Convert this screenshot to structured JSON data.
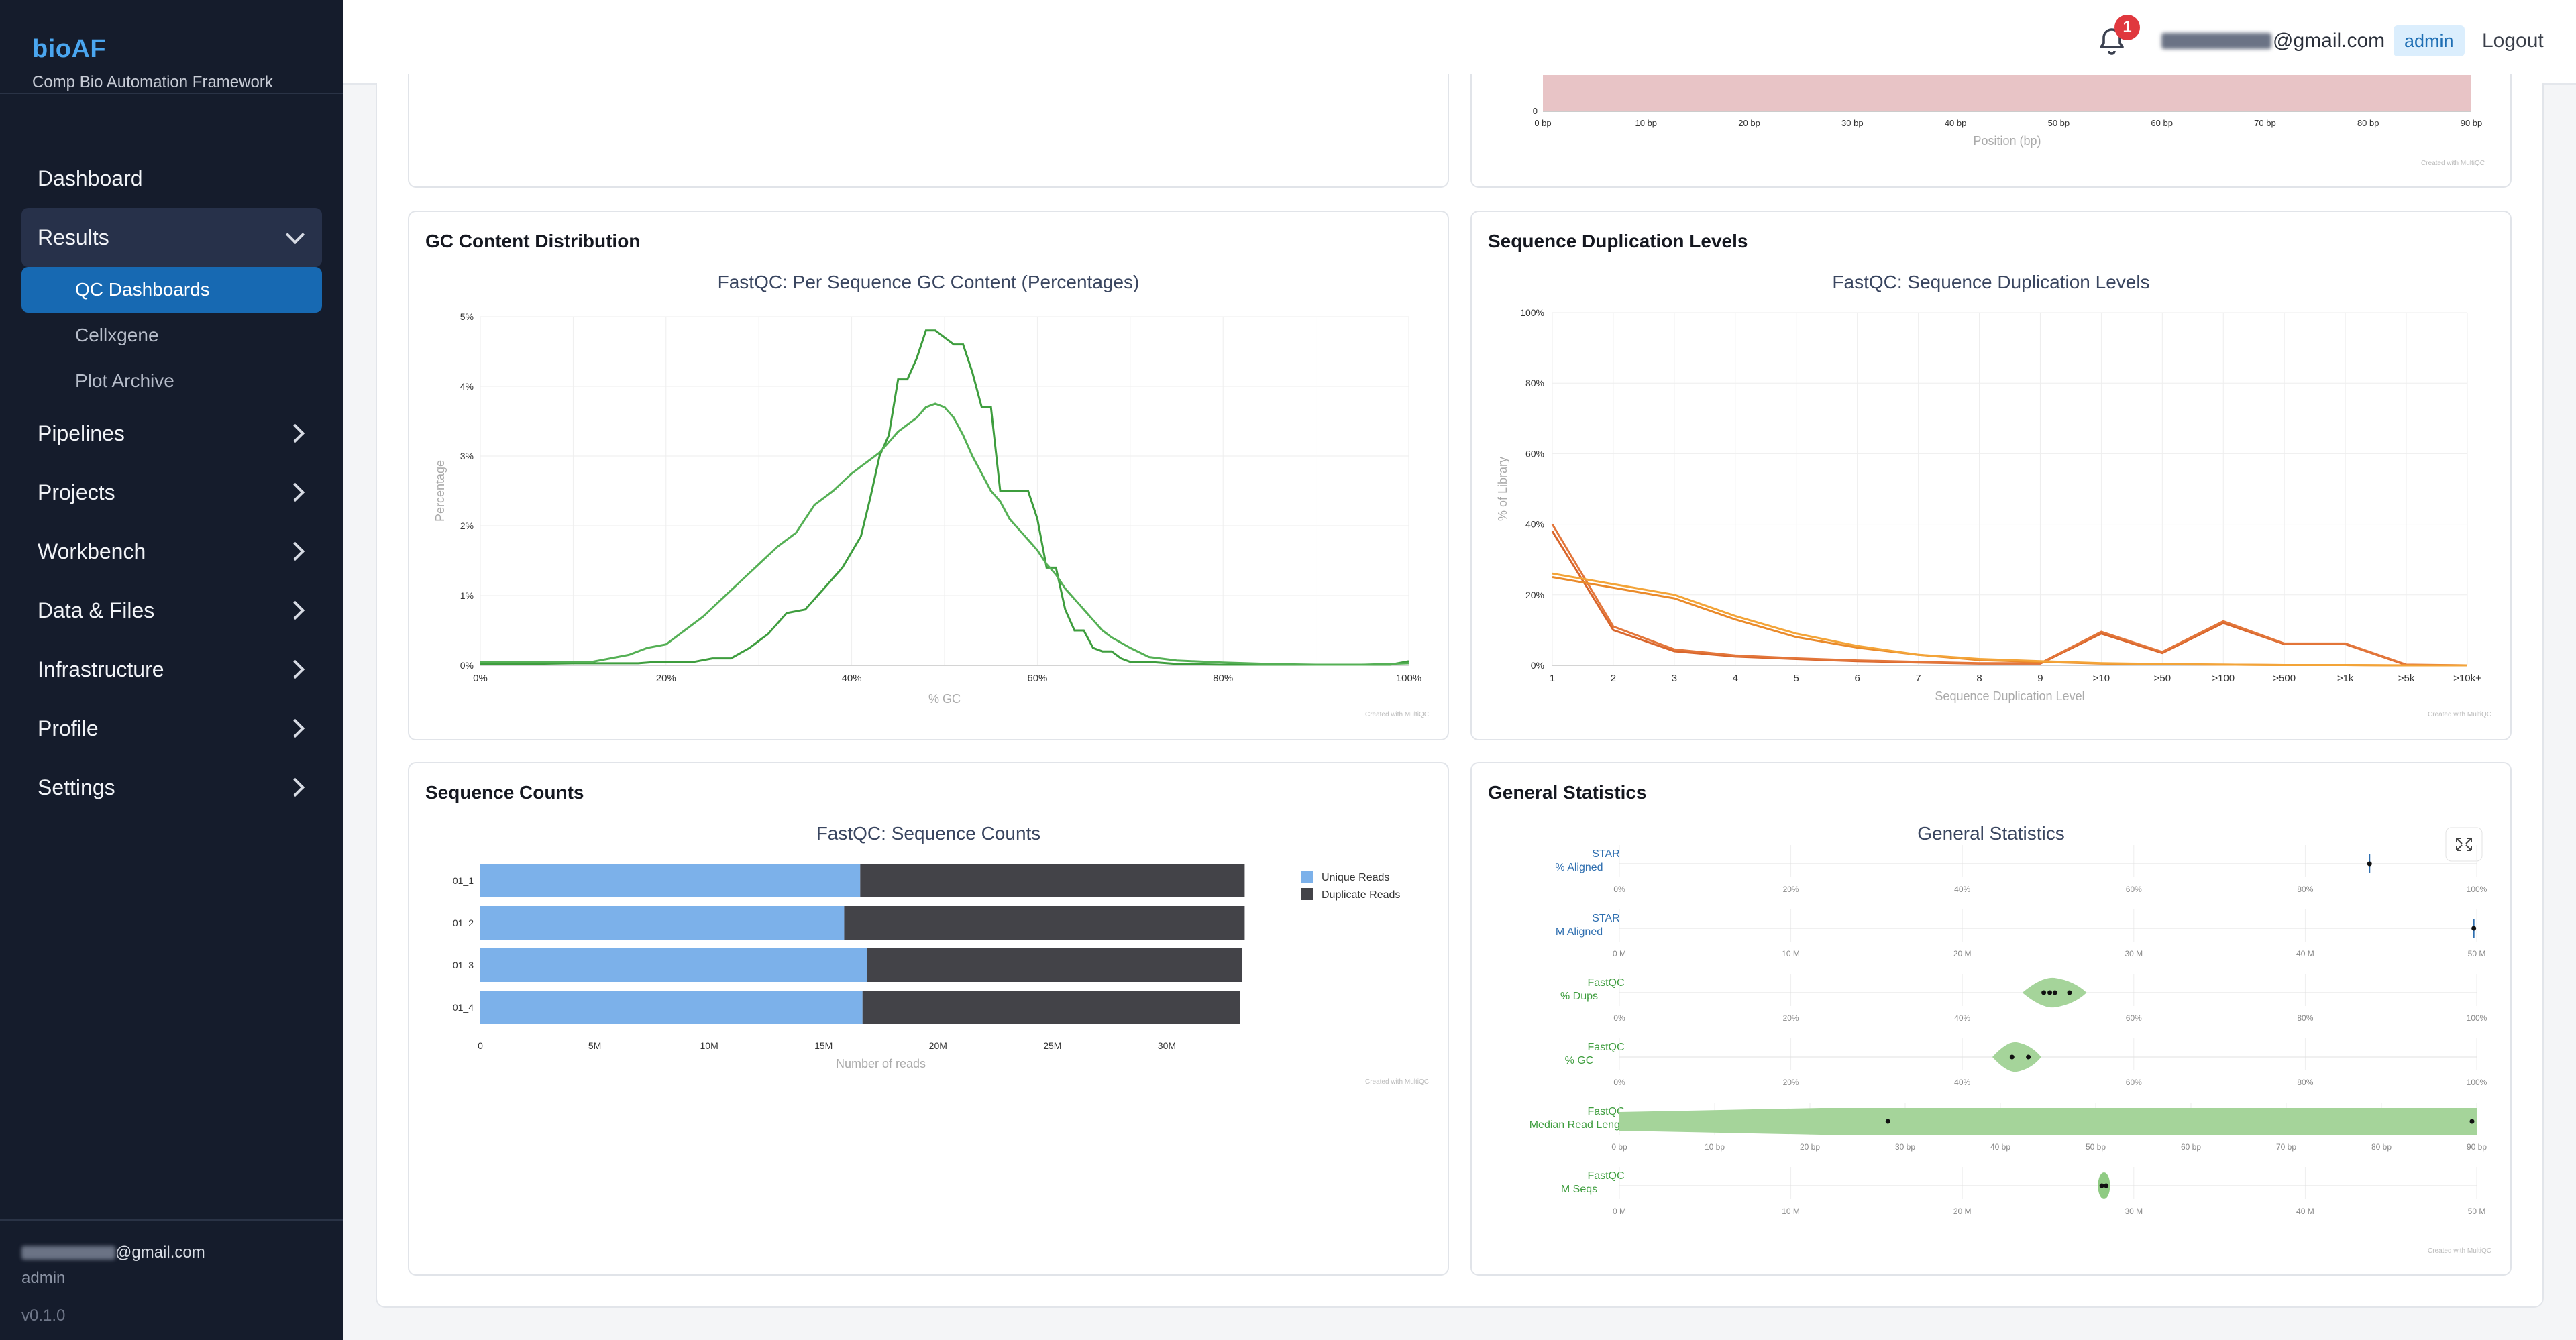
{
  "app": {
    "title": "bioAF",
    "subtitle": "Comp Bio Automation Framework",
    "version": "v0.1.0"
  },
  "nav": {
    "dashboard": "Dashboard",
    "results": "Results",
    "results_sub": [
      "QC Dashboards",
      "Cellxgene",
      "Plot Archive"
    ],
    "items": [
      "Pipelines",
      "Projects",
      "Workbench",
      "Data & Files",
      "Infrastructure",
      "Profile",
      "Settings"
    ]
  },
  "user": {
    "email_suffix": "@gmail.com",
    "role": "admin"
  },
  "topbar": {
    "notification_count": "1",
    "email_suffix": "@gmail.com",
    "role_badge": "admin",
    "logout": "Logout"
  },
  "credit": "Created with MultiQC",
  "cards": {
    "top_right": {
      "xlabel": "Position (bp)",
      "y_zero": "0",
      "ticks": [
        "0 bp",
        "10 bp",
        "20 bp",
        "30 bp",
        "40 bp",
        "50 bp",
        "60 bp",
        "70 bp",
        "80 bp",
        "90 bp"
      ]
    },
    "gc": {
      "title": "GC Content Distribution",
      "chart_title": "FastQC: Per Sequence GC Content (Percentages)",
      "xlabel": "% GC",
      "ylabel": "Percentage",
      "xticks": [
        "0%",
        "20%",
        "40%",
        "60%",
        "80%",
        "100%"
      ],
      "yticks": [
        "0%",
        "1%",
        "2%",
        "3%",
        "4%",
        "5%"
      ]
    },
    "dup": {
      "title": "Sequence Duplication Levels",
      "chart_title": "FastQC: Sequence Duplication Levels",
      "xlabel": "Sequence Duplication Level",
      "ylabel": "% of Library",
      "xticks": [
        "1",
        "2",
        "3",
        "4",
        "5",
        "6",
        "7",
        "8",
        "9",
        ">10",
        ">50",
        ">100",
        ">500",
        ">1k",
        ">5k",
        ">10k+"
      ],
      "yticks": [
        "0%",
        "20%",
        "40%",
        "60%",
        "80%",
        "100%"
      ]
    },
    "counts": {
      "title": "Sequence Counts",
      "chart_title": "FastQC: Sequence Counts",
      "xlabel": "Number of reads",
      "legend": [
        "Unique Reads",
        "Duplicate Reads"
      ],
      "xticks": [
        "0",
        "5M",
        "10M",
        "15M",
        "20M",
        "25M",
        "30M"
      ]
    },
    "gen": {
      "title": "General Statistics",
      "chart_title": "General Statistics",
      "rows": [
        {
          "tool": "STAR",
          "metric": "% Aligned",
          "ticks": [
            "0%",
            "20%",
            "40%",
            "60%",
            "80%",
            "100%"
          ]
        },
        {
          "tool": "STAR",
          "metric": "M Aligned",
          "ticks": [
            "0 M",
            "10 M",
            "20 M",
            "30 M",
            "40 M",
            "50 M"
          ]
        },
        {
          "tool": "FastQC",
          "metric": "% Dups",
          "ticks": [
            "0%",
            "20%",
            "40%",
            "60%",
            "80%",
            "100%"
          ]
        },
        {
          "tool": "FastQC",
          "metric": "% GC",
          "ticks": [
            "0%",
            "20%",
            "40%",
            "60%",
            "80%",
            "100%"
          ]
        },
        {
          "tool": "FastQC",
          "metric": "Median Read Length",
          "ticks": [
            "0 bp",
            "10 bp",
            "20 bp",
            "30 bp",
            "40 bp",
            "50 bp",
            "60 bp",
            "70 bp",
            "80 bp",
            "90 bp"
          ]
        },
        {
          "tool": "FastQC",
          "metric": "M Seqs",
          "ticks": [
            "0 M",
            "10 M",
            "20 M",
            "30 M",
            "40 M",
            "50 M"
          ]
        }
      ]
    }
  },
  "chart_data": [
    {
      "type": "line",
      "title": "FastQC: Per Sequence GC Content (Percentages)",
      "xlabel": "% GC",
      "ylabel": "Percentage",
      "xlim": [
        0,
        100
      ],
      "ylim": [
        0,
        5
      ],
      "series": [
        {
          "x": [
            0,
            5,
            10,
            15,
            17,
            19,
            21,
            23,
            25,
            27,
            29,
            31,
            33,
            35,
            37,
            39,
            41,
            42,
            43,
            44,
            45,
            46,
            47,
            48,
            49,
            50,
            51,
            52,
            53,
            54,
            55,
            56,
            57,
            58,
            59,
            60,
            61,
            62,
            63,
            64,
            65,
            66,
            67,
            68,
            69,
            70,
            72,
            75,
            80,
            85,
            90,
            95,
            98,
            100
          ],
          "y": [
            0.02,
            0.02,
            0.03,
            0.03,
            0.03,
            0.05,
            0.05,
            0.05,
            0.1,
            0.1,
            0.25,
            0.45,
            0.75,
            0.8,
            1.1,
            1.4,
            1.85,
            2.4,
            3.0,
            3.3,
            4.1,
            4.1,
            4.4,
            4.8,
            4.8,
            4.7,
            4.6,
            4.6,
            4.2,
            3.7,
            3.7,
            2.5,
            2.5,
            2.5,
            2.5,
            2.1,
            1.4,
            1.4,
            0.8,
            0.5,
            0.5,
            0.25,
            0.2,
            0.2,
            0.1,
            0.05,
            0.05,
            0.02,
            0.01,
            0.01,
            0.01,
            0.01,
            0.01,
            0.06
          ]
        },
        {
          "x": [
            0,
            5,
            10,
            12,
            14,
            16,
            18,
            20,
            22,
            24,
            26,
            28,
            30,
            32,
            34,
            36,
            38,
            40,
            41,
            42,
            43,
            44,
            45,
            46,
            47,
            48,
            49,
            50,
            51,
            52,
            53,
            54,
            55,
            56,
            57,
            58,
            59,
            60,
            61,
            62,
            63,
            64,
            65,
            66,
            67,
            68,
            70,
            72,
            75,
            80,
            85,
            90,
            95,
            100
          ],
          "y": [
            0.05,
            0.05,
            0.05,
            0.05,
            0.1,
            0.15,
            0.25,
            0.3,
            0.5,
            0.7,
            0.95,
            1.2,
            1.45,
            1.7,
            1.9,
            2.3,
            2.5,
            2.75,
            2.85,
            2.95,
            3.05,
            3.2,
            3.35,
            3.45,
            3.55,
            3.7,
            3.75,
            3.7,
            3.55,
            3.3,
            3.0,
            2.75,
            2.5,
            2.35,
            2.1,
            1.95,
            1.8,
            1.65,
            1.45,
            1.3,
            1.1,
            0.95,
            0.8,
            0.65,
            0.5,
            0.4,
            0.25,
            0.12,
            0.07,
            0.04,
            0.02,
            0.01,
            0.01,
            0.03
          ]
        }
      ]
    },
    {
      "type": "line",
      "title": "FastQC: Sequence Duplication Levels",
      "xlabel": "Sequence Duplication Level",
      "ylabel": "% of Library",
      "categories": [
        "1",
        "2",
        "3",
        "4",
        "5",
        "6",
        "7",
        "8",
        "9",
        ">10",
        ">50",
        ">100",
        ">500",
        ">1k",
        ">5k",
        ">10k+"
      ],
      "ylim": [
        0,
        100
      ],
      "series": [
        {
          "values": [
            38,
            10,
            4,
            2.5,
            1.8,
            1.2,
            0.8,
            0.5,
            0.5,
            9,
            3.5,
            12,
            6,
            6,
            0.1,
            0
          ]
        },
        {
          "values": [
            40,
            11,
            4.5,
            2.8,
            2,
            1.4,
            1,
            0.6,
            0.6,
            9.5,
            3.8,
            12.5,
            6.2,
            6.2,
            0.2,
            0
          ]
        },
        {
          "values": [
            25,
            22,
            19,
            13,
            8,
            5,
            3,
            1.5,
            1,
            0.5,
            0.3,
            0.2,
            0.1,
            0.1,
            0,
            0
          ]
        },
        {
          "values": [
            26,
            23,
            20,
            14,
            9,
            5.5,
            3,
            1.8,
            1.2,
            0.6,
            0.4,
            0.2,
            0.1,
            0.1,
            0,
            0
          ]
        }
      ]
    },
    {
      "type": "bar",
      "title": "FastQC: Sequence Counts",
      "xlabel": "Number of reads",
      "categories": [
        "01_1",
        "01_2",
        "01_3",
        "01_4"
      ],
      "xlim": [
        0,
        35
      ],
      "series": [
        {
          "name": "Unique Reads",
          "values": [
            16.6,
            15.9,
            16.9,
            16.7
          ]
        },
        {
          "name": "Duplicate Reads",
          "values": [
            16.8,
            17.5,
            16.4,
            16.5
          ]
        }
      ]
    },
    {
      "type": "scatter",
      "title": "General Statistics",
      "rows": [
        {
          "name": "STAR % Aligned",
          "xlim": [
            0,
            100
          ],
          "points": [
            87.5
          ]
        },
        {
          "name": "STAR M Aligned",
          "xlim": [
            0,
            59
          ],
          "points": [
            58.8
          ]
        },
        {
          "name": "FastQC % Dups",
          "xlim": [
            0,
            100
          ],
          "points": [
            49.5,
            50.2,
            50.8,
            52.5
          ],
          "violin": [
            47,
            54.5
          ]
        },
        {
          "name": "FastQC % GC",
          "xlim": [
            0,
            100
          ],
          "points": [
            45.8,
            47.7
          ],
          "violin": [
            43.5,
            49.2
          ]
        },
        {
          "name": "FastQC Median Read Length",
          "xlim": [
            0,
            91
          ],
          "points": [
            28.5,
            90.5
          ],
          "violin": [
            0,
            91
          ]
        },
        {
          "name": "FastQC M Seqs",
          "xlim": [
            0,
            59
          ],
          "points": [
            33.2,
            33.5
          ]
        }
      ]
    }
  ]
}
